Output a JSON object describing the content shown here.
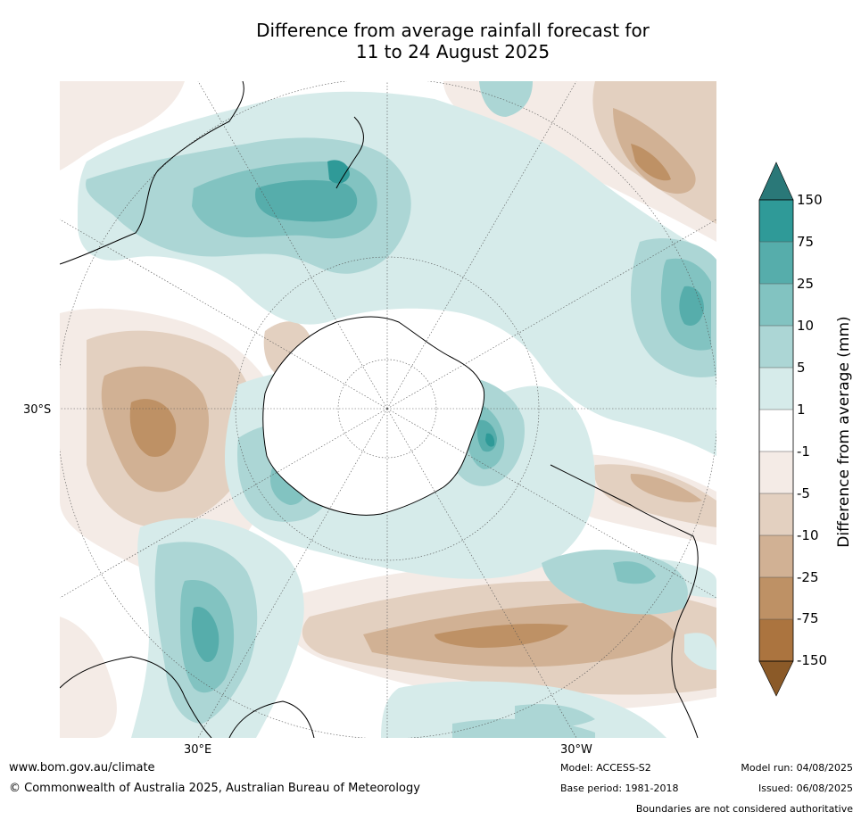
{
  "title": {
    "line1": "Difference from average rainfall forecast for",
    "line2": "11 to 24 August 2025"
  },
  "map": {
    "projection": "south-polar-stereographic",
    "lat_label": "30°S",
    "lon_labels": [
      "30°E",
      "30°W"
    ]
  },
  "colorbar": {
    "label": "Difference from average (mm)",
    "ticks": [
      "150",
      "75",
      "25",
      "10",
      "5",
      "1",
      "-1",
      "-5",
      "-10",
      "-25",
      "-75",
      "-150"
    ],
    "colors": {
      "over": "#2a7878",
      "b75_150": "#2f9a98",
      "b25_75": "#56adab",
      "b10_25": "#82c3c1",
      "b5_10": "#acd6d5",
      "b1_5": "#d6ebea",
      "bm1_1": "#ffffff",
      "bm5_m1": "#f4ebe6",
      "bm10_m5": "#e3d0c0",
      "bm25_m10": "#d1b194",
      "bm75_m25": "#be9165",
      "bm150_m75": "#ab743f",
      "under": "#8b5a28"
    }
  },
  "footer": {
    "website": "www.bom.gov.au/climate",
    "copyright": "© Commonwealth of Australia 2025, Australian Bureau of Meteorology",
    "model": "Model: ACCESS-S2",
    "base_period": "Base period: 1981-2018",
    "model_run": "Model run: 04/08/2025",
    "issued": "Issued: 06/08/2025",
    "disclaimer": "Boundaries are not considered authoritative"
  }
}
